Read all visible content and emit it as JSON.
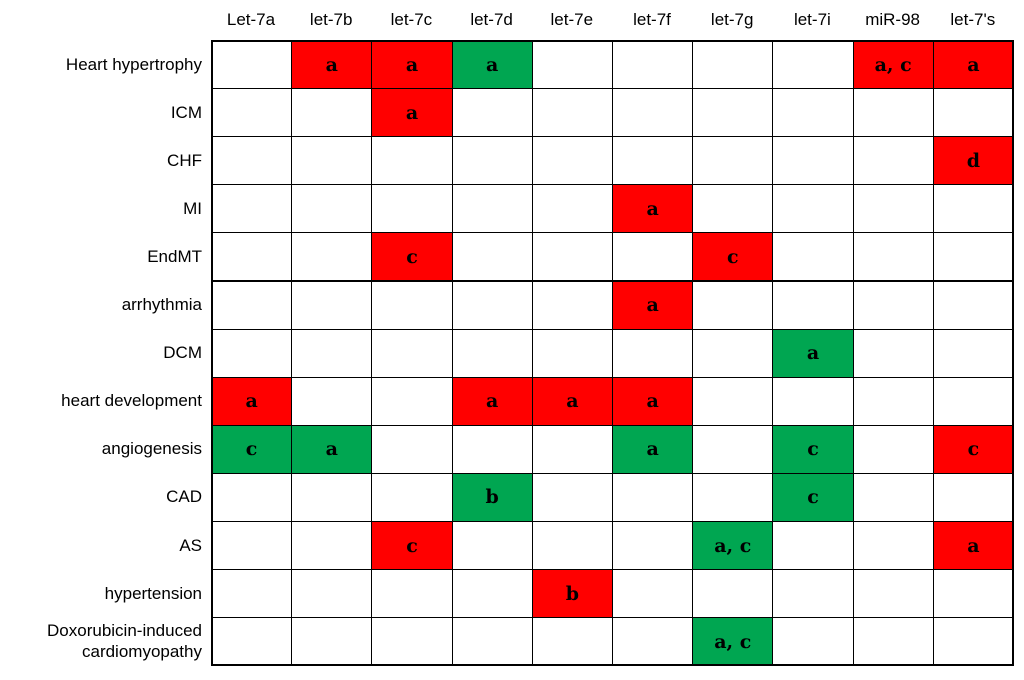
{
  "colors": {
    "red": "#ff0000",
    "green": "#00a651",
    "empty": "#ffffff"
  },
  "columns": [
    "Let-7a",
    "let-7b",
    "let-7c",
    "let-7d",
    "let-7e",
    "let-7f",
    "let-7g",
    "let-7i",
    "miR-98",
    "let-7's"
  ],
  "rows": [
    {
      "label": "Heart hypertrophy",
      "cells": [
        null,
        {
          "c": "red",
          "t": "a"
        },
        {
          "c": "red",
          "t": "a"
        },
        {
          "c": "green",
          "t": "a"
        },
        null,
        null,
        null,
        null,
        {
          "c": "red",
          "t": "a, c"
        },
        {
          "c": "red",
          "t": "a"
        }
      ]
    },
    {
      "label": "ICM",
      "cells": [
        null,
        null,
        {
          "c": "red",
          "t": "a"
        },
        null,
        null,
        null,
        null,
        null,
        null,
        null
      ]
    },
    {
      "label": "CHF",
      "cells": [
        null,
        null,
        null,
        null,
        null,
        null,
        null,
        null,
        null,
        {
          "c": "red",
          "t": "d"
        }
      ]
    },
    {
      "label": "MI",
      "cells": [
        null,
        null,
        null,
        null,
        null,
        {
          "c": "red",
          "t": "a"
        },
        null,
        null,
        null,
        null
      ]
    },
    {
      "label": "EndMT",
      "cells": [
        null,
        null,
        {
          "c": "red",
          "t": "c"
        },
        null,
        null,
        null,
        {
          "c": "red",
          "t": "c"
        },
        null,
        null,
        null
      ]
    },
    {
      "label": "arrhythmia",
      "cells": [
        null,
        null,
        null,
        null,
        null,
        {
          "c": "red",
          "t": "a"
        },
        null,
        null,
        null,
        null
      ]
    },
    {
      "label": "DCM",
      "cells": [
        null,
        null,
        null,
        null,
        null,
        null,
        null,
        {
          "c": "green",
          "t": "a"
        },
        null,
        null
      ]
    },
    {
      "label": "heart development",
      "cells": [
        {
          "c": "red",
          "t": "a"
        },
        null,
        null,
        {
          "c": "red",
          "t": "a"
        },
        {
          "c": "red",
          "t": "a"
        },
        {
          "c": "red",
          "t": "a"
        },
        null,
        null,
        null,
        null
      ]
    },
    {
      "label": "angiogenesis",
      "cells": [
        {
          "c": "green",
          "t": "c"
        },
        {
          "c": "green",
          "t": "a"
        },
        null,
        null,
        null,
        {
          "c": "green",
          "t": "a"
        },
        null,
        {
          "c": "green",
          "t": "c"
        },
        null,
        {
          "c": "red",
          "t": "c"
        }
      ]
    },
    {
      "label": "CAD",
      "cells": [
        null,
        null,
        null,
        {
          "c": "green",
          "t": "b"
        },
        null,
        null,
        null,
        {
          "c": "green",
          "t": "c"
        },
        null,
        null
      ]
    },
    {
      "label": "AS",
      "cells": [
        null,
        null,
        {
          "c": "red",
          "t": "c"
        },
        null,
        null,
        null,
        {
          "c": "green",
          "t": "a, c"
        },
        null,
        null,
        {
          "c": "red",
          "t": "a"
        }
      ]
    },
    {
      "label": "hypertension",
      "cells": [
        null,
        null,
        null,
        null,
        {
          "c": "red",
          "t": "b"
        },
        null,
        null,
        null,
        null,
        null
      ]
    },
    {
      "label": "Doxorubicin-induced\ncardiomyopathy",
      "cells": [
        null,
        null,
        null,
        null,
        null,
        null,
        {
          "c": "green",
          "t": "a, c"
        },
        null,
        null,
        null
      ]
    }
  ]
}
